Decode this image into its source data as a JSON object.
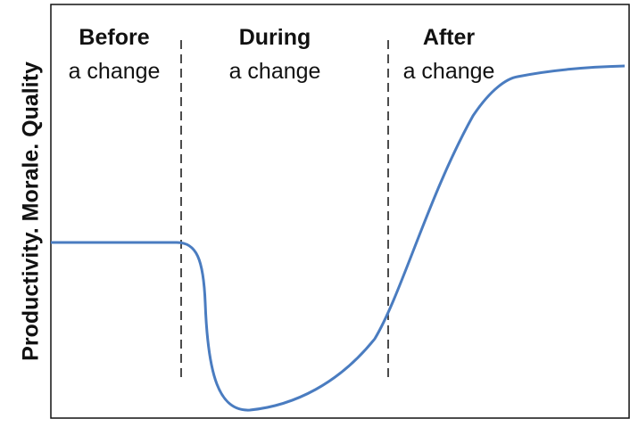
{
  "axis_label": "Productivity. Morale. Quality",
  "phases": [
    {
      "line1": "Before",
      "line2": "a change"
    },
    {
      "line1": "During",
      "line2": "a change"
    },
    {
      "line1": "After",
      "line2": "a change"
    }
  ]
}
